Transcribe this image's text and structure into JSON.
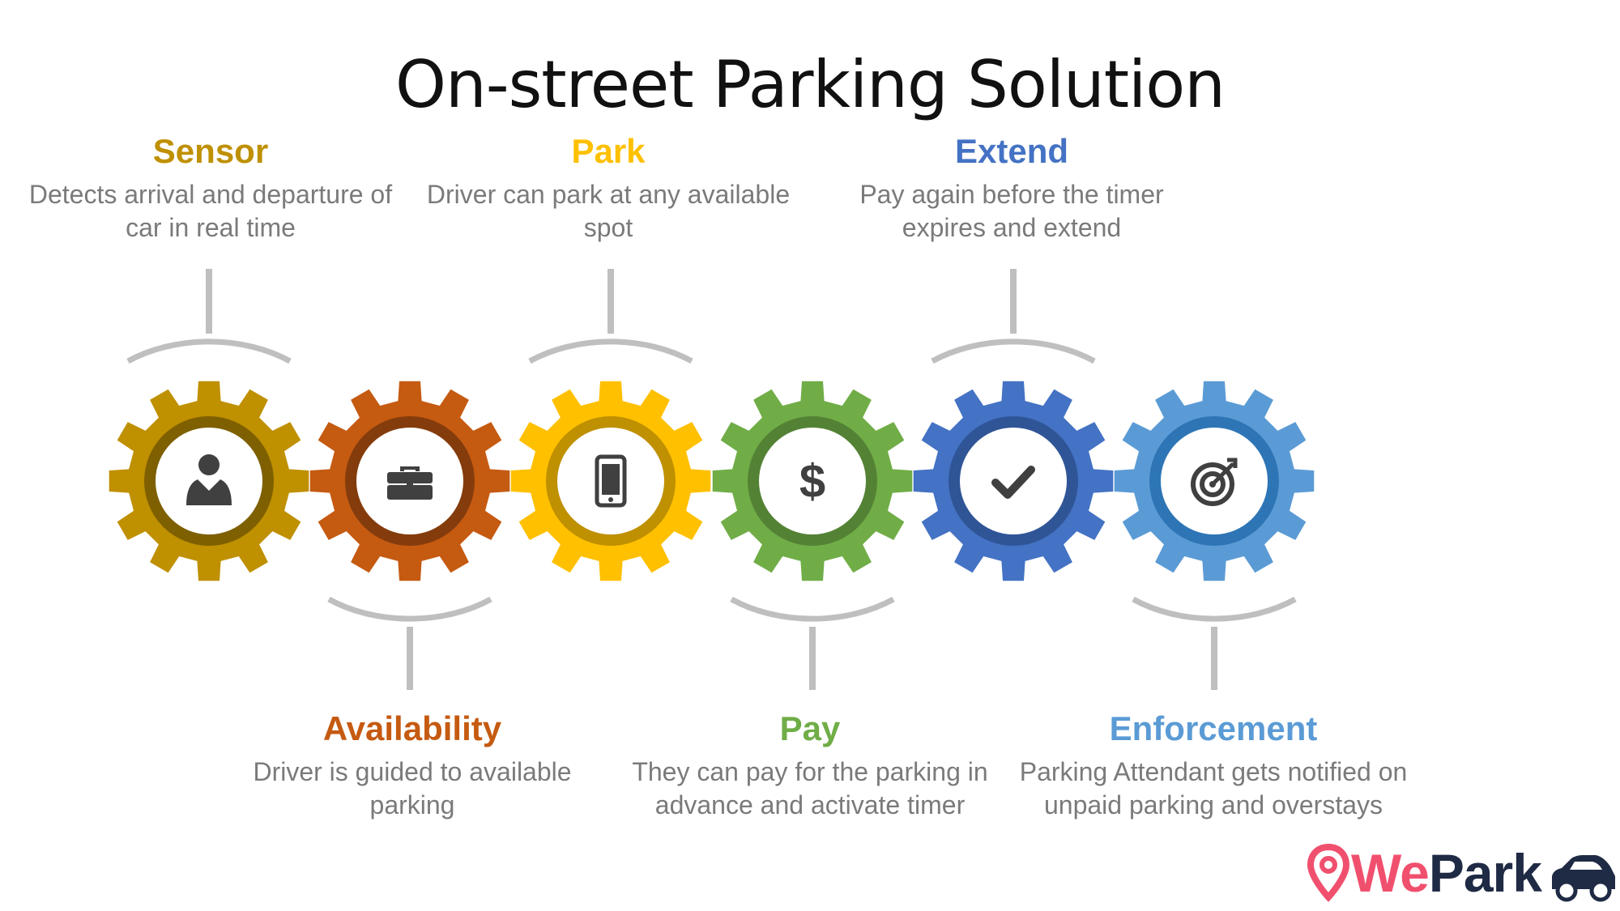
{
  "title": "On-street Parking Solution",
  "steps": [
    {
      "title": "Sensor",
      "description": "Detects arrival and departure of car in real time",
      "icon": "person-icon",
      "color": "#BF9000",
      "inner_color": "#7F6000",
      "position": "top"
    },
    {
      "title": "Availability",
      "description": "Driver is guided to available parking",
      "icon": "briefcase-icon",
      "color": "#C55A11",
      "inner_color": "#843C0C",
      "position": "bottom"
    },
    {
      "title": "Park",
      "description": "Driver can park at any available spot",
      "icon": "smartphone-icon",
      "color": "#FFC000",
      "inner_color": "#BF9000",
      "position": "top"
    },
    {
      "title": "Pay",
      "description": "They can pay for the parking in advance and activate timer",
      "icon": "dollar-icon",
      "color": "#70AD47",
      "inner_color": "#548235",
      "position": "bottom"
    },
    {
      "title": "Extend",
      "description": "Pay again before the timer expires and extend",
      "icon": "checkmark-icon",
      "color": "#4472C4",
      "inner_color": "#2F5597",
      "position": "top"
    },
    {
      "title": "Enforcement",
      "description": "Parking Attendant gets notified on unpaid parking and overstays",
      "icon": "target-icon",
      "color": "#5B9BD5",
      "inner_color": "#2E75B6",
      "position": "bottom"
    }
  ],
  "connector_color": "#BFBFBF",
  "icon_color": "#404040",
  "logo": {
    "text_we": "We",
    "text_park": "Park",
    "we_color": "#F0506E",
    "park_color": "#1F2A44"
  }
}
